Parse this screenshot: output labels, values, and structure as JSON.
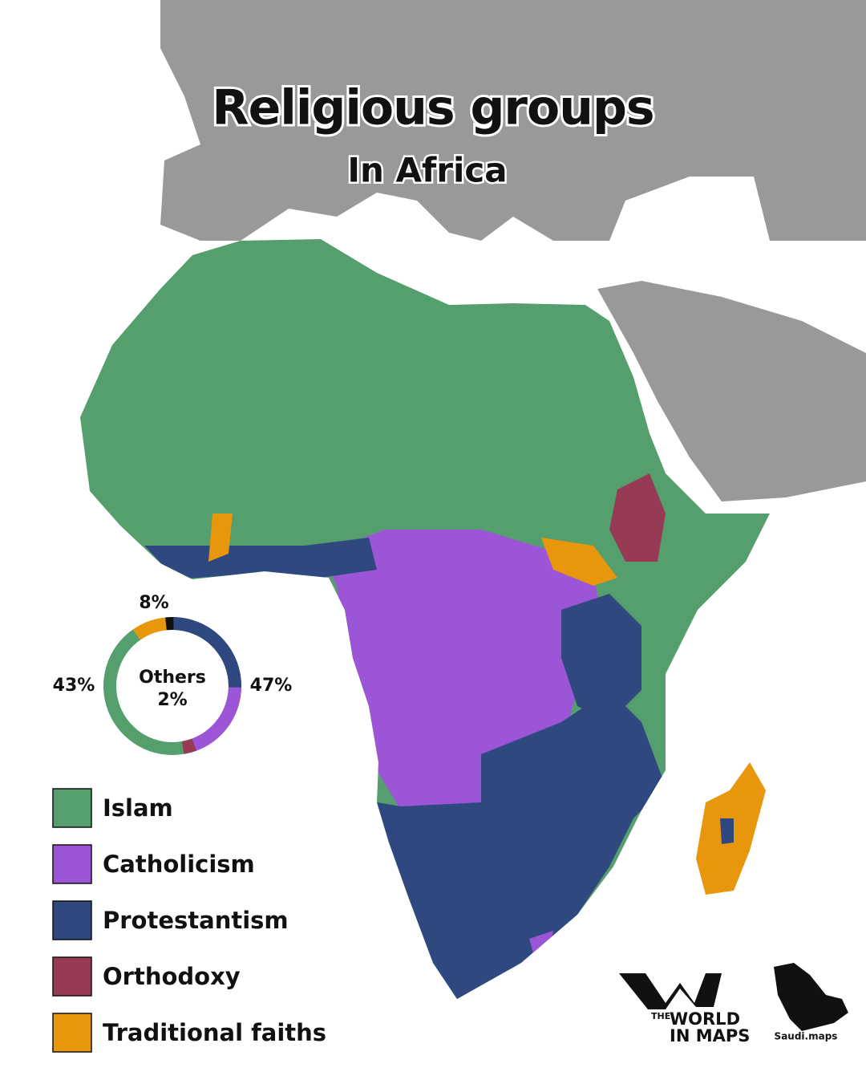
{
  "header": {
    "title": "Religious groups",
    "subtitle": "In Africa"
  },
  "donut": {
    "center_label": "Others",
    "segments": [
      {
        "key": "others",
        "value": 2,
        "label": "2%",
        "color": "#111111"
      },
      {
        "key": "christianity",
        "value": 47,
        "label": "47%",
        "color": "#2f4880",
        "parts": [
          {
            "value": 25,
            "color": "#2f4880"
          },
          {
            "value": 19,
            "color": "#9b55d6"
          },
          {
            "value": 3,
            "color": "#973b54"
          }
        ]
      },
      {
        "key": "islam",
        "value": 43,
        "label": "43%",
        "color": "#559e6d"
      },
      {
        "key": "traditional",
        "value": 8,
        "label": "8%",
        "color": "#e8960c"
      }
    ]
  },
  "legend": [
    {
      "label": "Islam",
      "color": "#559e6d"
    },
    {
      "label": "Catholicism",
      "color": "#9b55d6"
    },
    {
      "label": "Protestantism",
      "color": "#2f4880"
    },
    {
      "label": "Orthodoxy",
      "color": "#973b54"
    },
    {
      "label": "Traditional faiths",
      "color": "#e8960c"
    }
  ],
  "credits": {
    "brand_small": "THE",
    "brand_line1": "WORLD",
    "brand_line2": "IN MAPS",
    "partner": "Saudi.maps"
  }
}
